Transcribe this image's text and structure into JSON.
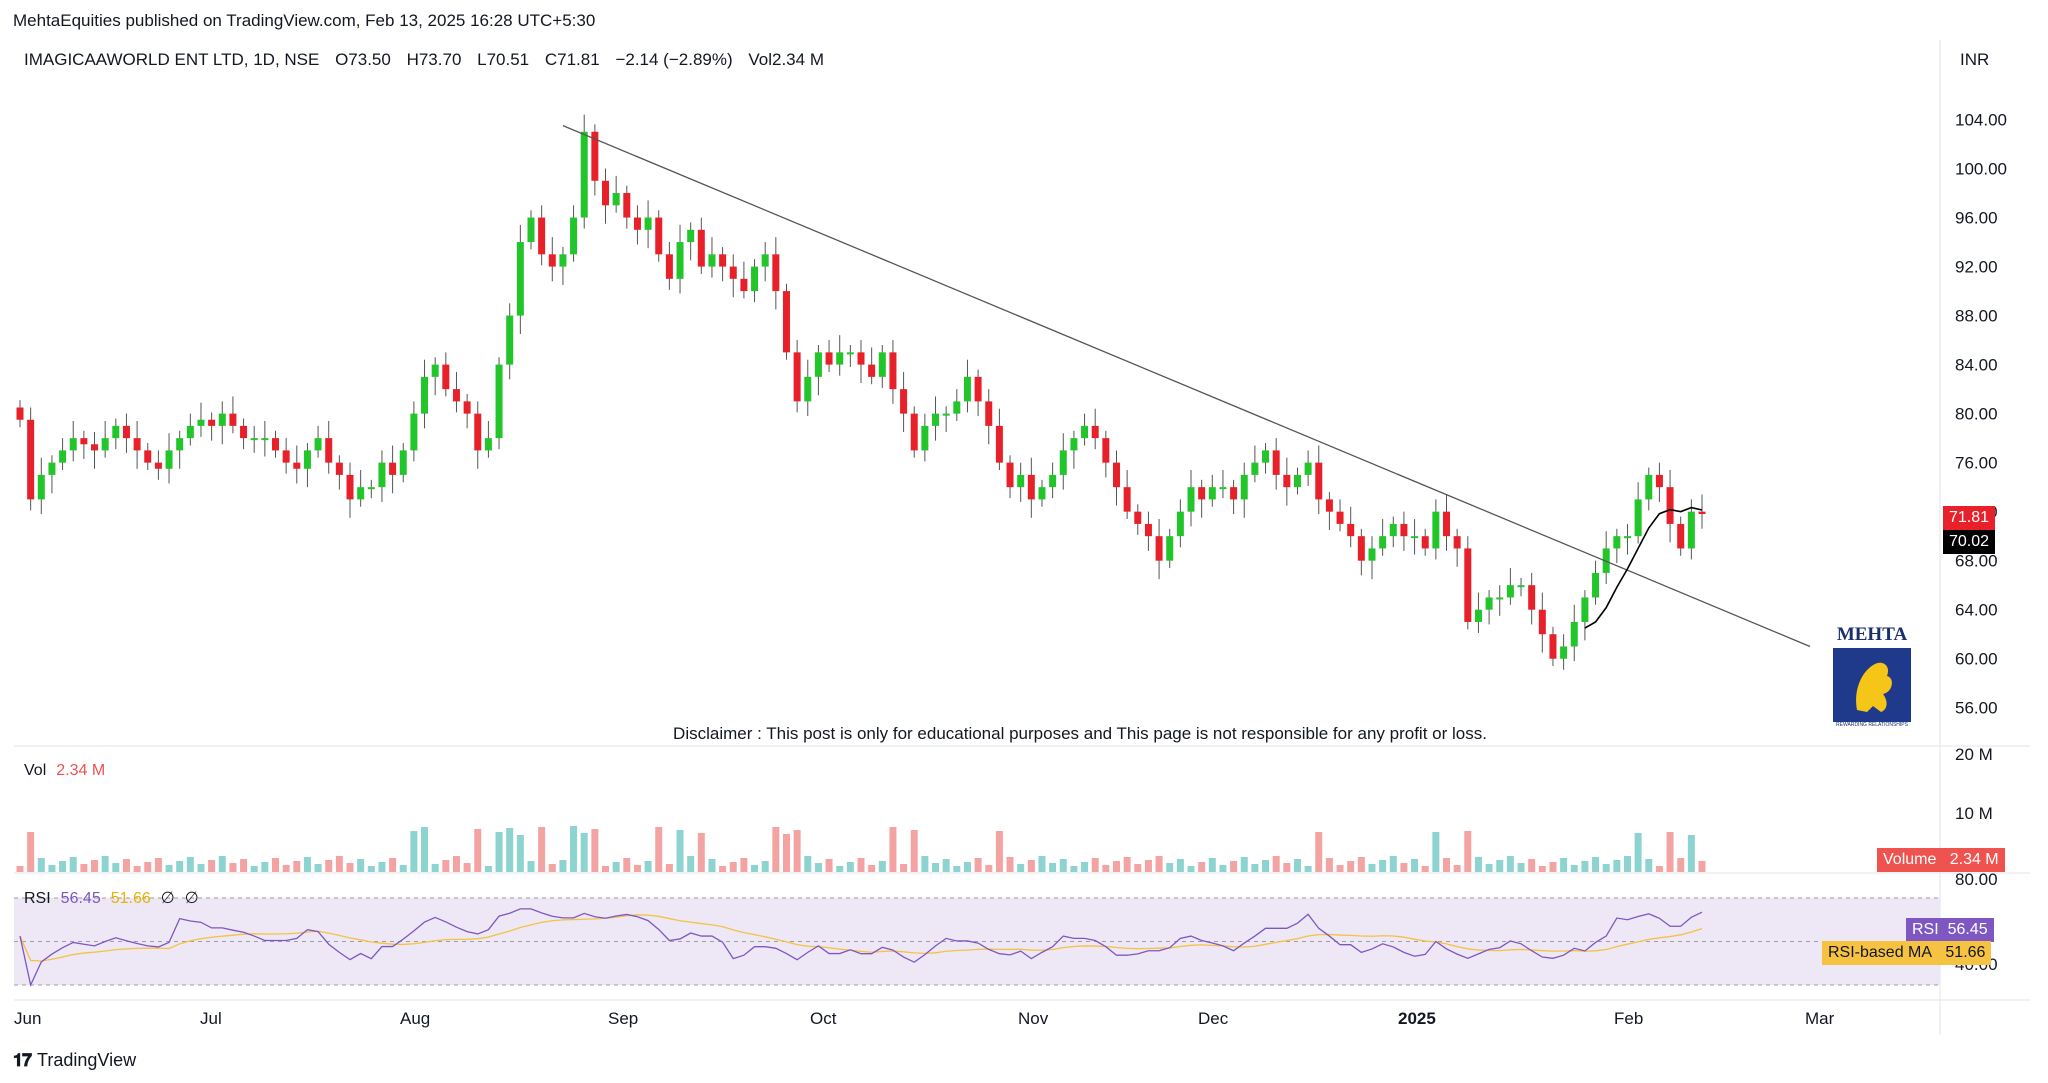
{
  "header": {
    "publisher_line": "MehtaEquities published on TradingView.com, Feb 13, 2025 16:28 UTC+5:30",
    "symbol": "IMAGICAAWORLD ENT LTD, 1D, NSE",
    "open": "O73.50",
    "high": "H73.70",
    "low": "L70.51",
    "close": "C71.81",
    "change": "−2.14 (−2.89%)",
    "volume": "Vol2.34 M",
    "currency": "INR"
  },
  "disclaimer": "Disclaimer : This post is only for educational purposes and This page is not responsible for any profit or loss.",
  "volume_pane": {
    "label": "Vol",
    "value": "2.34 M",
    "tag_label": "Volume",
    "tag_value": "2.34 M",
    "axis": [
      "20 M",
      "10 M"
    ]
  },
  "rsi_pane": {
    "label": "RSI",
    "rsi": "56.45",
    "ma": "51.66",
    "icon1": "∅",
    "icon2": "∅",
    "tag_rsi_label": "RSI",
    "tag_rsi_value": "56.45",
    "tag_ma_label": "RSI-based MA",
    "tag_ma_value": "51.66",
    "axis": [
      "80.00",
      "40.00"
    ]
  },
  "price_tags": {
    "last": "71.81",
    "ma": "70.02"
  },
  "footer": {
    "brand": "TradingView"
  },
  "logo": {
    "title": "MEHTA",
    "tagline": "REWARDING RELATIONSHIPS"
  },
  "colors": {
    "up": "#22c52a",
    "down": "#e8202a",
    "vol_up": "#8dd3cf",
    "vol_down": "#f4a3a3",
    "rsi": "#7e57c2",
    "rsi_ma": "#f5c242",
    "rsi_band": "#ede7f6"
  },
  "chart_data": {
    "type": "candlestick",
    "y_axis_ticks": [
      "104.00",
      "100.00",
      "96.00",
      "92.00",
      "88.00",
      "84.00",
      "80.00",
      "76.00",
      "72.00",
      "68.00",
      "64.00",
      "60.00",
      "56.00"
    ],
    "x_axis_labels": [
      "Jun",
      "Jul",
      "Aug",
      "Sep",
      "Oct",
      "Nov",
      "Dec",
      "2025",
      "Feb",
      "Mar"
    ],
    "ylim": [
      55,
      106
    ],
    "closes": [
      79.5,
      73,
      75,
      76,
      77,
      78,
      77.5,
      77,
      78,
      79,
      78,
      77,
      76,
      75.5,
      77,
      78,
      79,
      79.5,
      79,
      80,
      79,
      78,
      78,
      78,
      77,
      76,
      75.5,
      77,
      78,
      76,
      75,
      73,
      74,
      74,
      76,
      75,
      77,
      80,
      83,
      84,
      82,
      81,
      80,
      77,
      78,
      84,
      88,
      94,
      96,
      93,
      92,
      93,
      96,
      103,
      99,
      97,
      98,
      96,
      95,
      96,
      93,
      91,
      94,
      95,
      92,
      93,
      92,
      91,
      90,
      92,
      93,
      90,
      85,
      81,
      83,
      85,
      84,
      85,
      85,
      84,
      83,
      85,
      82,
      80,
      77,
      79,
      80,
      80,
      81,
      83,
      81,
      79,
      76,
      74,
      75,
      73,
      74,
      75,
      77,
      78,
      79,
      78,
      76,
      74,
      72,
      71,
      70,
      68,
      70,
      72,
      74,
      73,
      74,
      74,
      73,
      75,
      76,
      77,
      75,
      74,
      75,
      76,
      73,
      72,
      71,
      70,
      68,
      69,
      70,
      71,
      70,
      70,
      69,
      72,
      70,
      69,
      63,
      64,
      65,
      65,
      66,
      66,
      64,
      62,
      60,
      61,
      63,
      65,
      67,
      69,
      70,
      70,
      73,
      75,
      74,
      71,
      69,
      72,
      71.81
    ],
    "trendline": {
      "from": [
        "Aug 19",
        103.5
      ],
      "to": [
        "Mar",
        61
      ]
    },
    "notes": "Daily candles from June 2024 to Feb 13, 2025; descending trendline from August high near 103 broken upward in early February."
  }
}
